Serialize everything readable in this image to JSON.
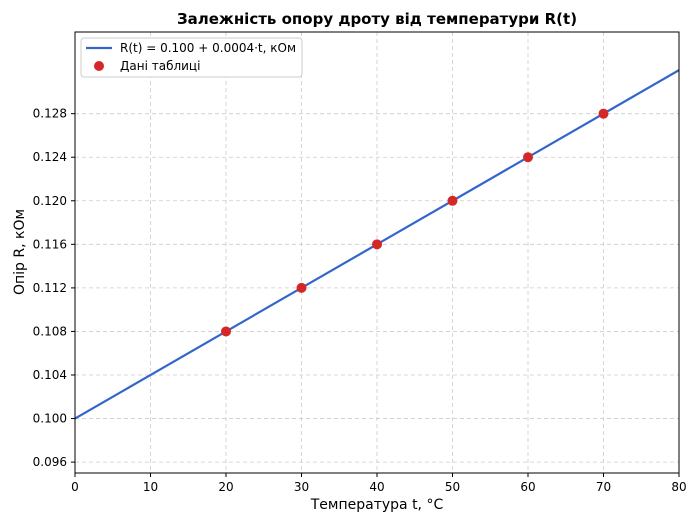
{
  "chart_data": {
    "type": "line",
    "title": "Залежність опору дроту від температури R(t)",
    "xlabel": "Температура t, °C",
    "ylabel": "Опір R, кОм",
    "xlim": [
      0,
      80
    ],
    "ylim": [
      0.095,
      0.1355
    ],
    "xticks": [
      0,
      10,
      20,
      30,
      40,
      50,
      60,
      70,
      80
    ],
    "yticks": [
      0.096,
      0.1,
      0.104,
      0.108,
      0.112,
      0.116,
      0.12,
      0.124,
      0.128
    ],
    "ytick_labels": [
      "0.096",
      "0.100",
      "0.104",
      "0.108",
      "0.112",
      "0.116",
      "0.120",
      "0.124",
      "0.128"
    ],
    "grid": true,
    "legend_position": "top-left",
    "series": [
      {
        "name": "R(t) = 0.100 + 0.0004·t, кОм",
        "kind": "line",
        "color": "#3366cc",
        "x": [
          0,
          80
        ],
        "y": [
          0.1,
          0.132
        ]
      },
      {
        "name": "Дані таблиці",
        "kind": "scatter",
        "color": "#d62728",
        "x": [
          20,
          30,
          40,
          50,
          60,
          70
        ],
        "y": [
          0.108,
          0.112,
          0.116,
          0.12,
          0.124,
          0.128
        ]
      }
    ]
  }
}
